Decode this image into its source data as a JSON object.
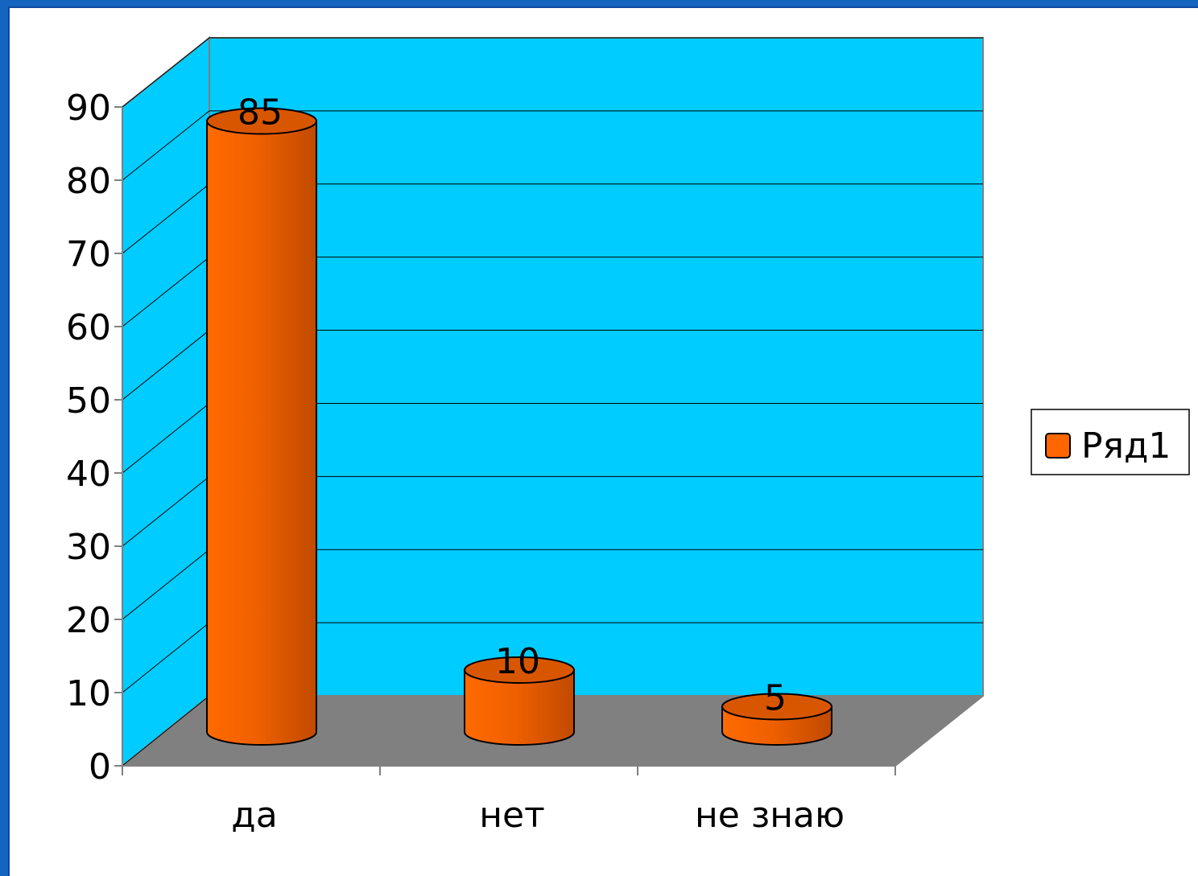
{
  "chart_data": {
    "type": "bar",
    "style": "3d-cylinder",
    "categories": [
      "да",
      "нет",
      "не знаю"
    ],
    "series": [
      {
        "name": "Ряд1",
        "values": [
          85,
          10,
          5
        ],
        "color": "#ff6600"
      }
    ],
    "ylim": [
      0,
      90
    ],
    "yticks": [
      0,
      10,
      20,
      30,
      40,
      50,
      60,
      70,
      80,
      90
    ],
    "ytick_labels": [
      "0",
      "10",
      "20",
      "30",
      "40",
      "50",
      "60",
      "70",
      "80",
      "90"
    ],
    "data_labels": [
      "85",
      "10",
      "5"
    ],
    "grid": true,
    "legend_position": "right",
    "wall_color": "#00ccff",
    "floor_color": "#808080"
  }
}
